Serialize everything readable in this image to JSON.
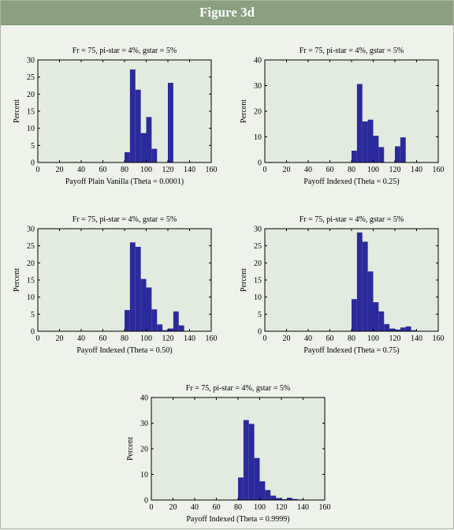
{
  "figure": {
    "title": "Figure 3d"
  },
  "colors": {
    "header_bg": "#8aa080",
    "plot_bg": "#e3ebe0",
    "bar": "#2b2a9c",
    "page_bg": "#eef2ea"
  },
  "chart_data": [
    {
      "type": "bar",
      "title": "Fr = 75, pi-star = 4%, gstar = 5%",
      "xlabel": "Payoff Plain Vanilla (Theta = 0.0001)",
      "ylabel": "Percent",
      "xlim": [
        0,
        160
      ],
      "ylim": [
        0,
        30
      ],
      "xticks": [
        0,
        20,
        40,
        60,
        80,
        100,
        120,
        140,
        160
      ],
      "yticks": [
        0,
        5,
        10,
        15,
        20,
        25,
        30
      ],
      "bin_width": 5,
      "bins": [
        {
          "x": 80,
          "y": 3
        },
        {
          "x": 85,
          "y": 27.2
        },
        {
          "x": 90,
          "y": 21.3
        },
        {
          "x": 95,
          "y": 8.6
        },
        {
          "x": 100,
          "y": 13.3
        },
        {
          "x": 105,
          "y": 4
        },
        {
          "x": 120,
          "y": 23.3
        }
      ]
    },
    {
      "type": "bar",
      "title": "Fr = 75, pi-star = 4%, gstar = 5%",
      "xlabel": "Payoff Indexed (Theta = 0.25)",
      "ylabel": "Percent",
      "xlim": [
        0,
        160
      ],
      "ylim": [
        0,
        40
      ],
      "xticks": [
        0,
        20,
        40,
        60,
        80,
        100,
        120,
        140,
        160
      ],
      "yticks": [
        0,
        10,
        20,
        30,
        40
      ],
      "bin_width": 5,
      "bins": [
        {
          "x": 80,
          "y": 4.6
        },
        {
          "x": 85,
          "y": 30.6
        },
        {
          "x": 90,
          "y": 16
        },
        {
          "x": 95,
          "y": 16.7
        },
        {
          "x": 100,
          "y": 10.4
        },
        {
          "x": 105,
          "y": 6
        },
        {
          "x": 120,
          "y": 6.3
        },
        {
          "x": 125,
          "y": 9.8
        }
      ]
    },
    {
      "type": "bar",
      "title": "Fr = 75, pi-star = 4%, gstar = 5%",
      "xlabel": "Payoff Indexed (Theta = 0.50)",
      "ylabel": "Percent",
      "xlim": [
        0,
        160
      ],
      "ylim": [
        0,
        30
      ],
      "xticks": [
        0,
        20,
        40,
        60,
        80,
        100,
        120,
        140,
        160
      ],
      "yticks": [
        0,
        5,
        10,
        15,
        20,
        25,
        30
      ],
      "bin_width": 5,
      "bins": [
        {
          "x": 80,
          "y": 6.2
        },
        {
          "x": 85,
          "y": 26
        },
        {
          "x": 90,
          "y": 24.7
        },
        {
          "x": 95,
          "y": 15.3
        },
        {
          "x": 100,
          "y": 12.8
        },
        {
          "x": 105,
          "y": 6.4
        },
        {
          "x": 110,
          "y": 2
        },
        {
          "x": 115,
          "y": 0.3
        },
        {
          "x": 120,
          "y": 0.8
        },
        {
          "x": 125,
          "y": 5.8
        },
        {
          "x": 130,
          "y": 1.7
        }
      ]
    },
    {
      "type": "bar",
      "title": "Fr = 75, pi-star = 4%, gstar = 5%",
      "xlabel": "Payoff Indexed (Theta = 0.75)",
      "ylabel": "Percent",
      "xlim": [
        0,
        160
      ],
      "ylim": [
        0,
        30
      ],
      "xticks": [
        0,
        20,
        40,
        60,
        80,
        100,
        120,
        140,
        160
      ],
      "yticks": [
        0,
        5,
        10,
        15,
        20,
        25,
        30
      ],
      "bin_width": 5,
      "bins": [
        {
          "x": 80,
          "y": 9.4
        },
        {
          "x": 85,
          "y": 28.9
        },
        {
          "x": 90,
          "y": 26.2
        },
        {
          "x": 95,
          "y": 17.5
        },
        {
          "x": 100,
          "y": 8.5
        },
        {
          "x": 105,
          "y": 5.8
        },
        {
          "x": 110,
          "y": 2.1
        },
        {
          "x": 115,
          "y": 0.8
        },
        {
          "x": 120,
          "y": 0.5
        },
        {
          "x": 125,
          "y": 1.1
        },
        {
          "x": 130,
          "y": 1.4
        },
        {
          "x": 135,
          "y": 0.3
        }
      ]
    },
    {
      "type": "bar",
      "title": "Fr = 75, pi-star = 4%, gstar = 5%",
      "xlabel": "Payoff Indexed (Theta = 0.9999)",
      "ylabel": "Percent",
      "xlim": [
        0,
        160
      ],
      "ylim": [
        0,
        40
      ],
      "xticks": [
        0,
        20,
        40,
        60,
        80,
        100,
        120,
        140,
        160
      ],
      "yticks": [
        0,
        10,
        20,
        30,
        40
      ],
      "bin_width": 5,
      "bins": [
        {
          "x": 80,
          "y": 8.8
        },
        {
          "x": 85,
          "y": 31.2
        },
        {
          "x": 90,
          "y": 29.7
        },
        {
          "x": 95,
          "y": 16.4
        },
        {
          "x": 100,
          "y": 7.3
        },
        {
          "x": 105,
          "y": 3.9
        },
        {
          "x": 110,
          "y": 1.7
        },
        {
          "x": 115,
          "y": 0.8
        },
        {
          "x": 120,
          "y": 0.3
        },
        {
          "x": 125,
          "y": 0.9
        },
        {
          "x": 130,
          "y": 0.4
        },
        {
          "x": 135,
          "y": 0.2
        }
      ]
    }
  ]
}
